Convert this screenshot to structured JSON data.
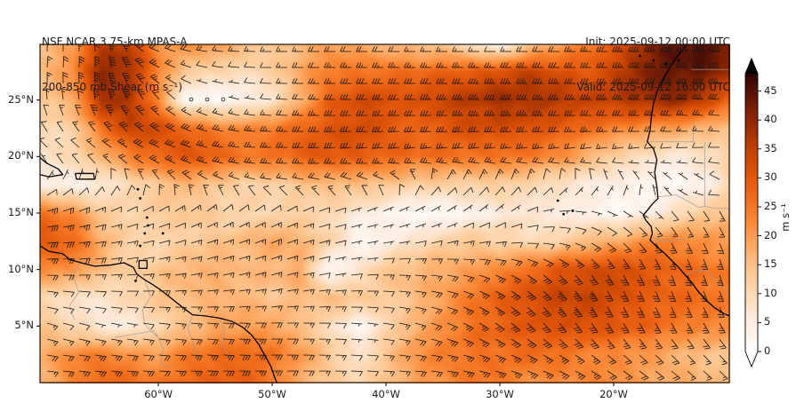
{
  "header": {
    "title_line1": "NSF NCAR 3.75-km MPAS-A",
    "title_line2": "200-850 mb Shear (m s⁻¹)",
    "init_text": "Init: 2025-09-12 00:00 UTC",
    "valid_text": "Valid: 2025-09-12 16:00 UTC"
  },
  "chart_data": {
    "type": "heatmap",
    "title": "NSF NCAR 3.75-km MPAS-A 200-850 mb Shear",
    "units": "m s⁻¹",
    "legend_position": "right-colorbar",
    "grid": false,
    "projection": {
      "lon_min": -70.4,
      "lon_max": -9.84,
      "lat_min": 0.0,
      "lat_max": 29.92
    },
    "x_ticks": [
      {
        "label": "60°W",
        "lon": -60
      },
      {
        "label": "50°W",
        "lon": -50
      },
      {
        "label": "40°W",
        "lon": -40
      },
      {
        "label": "30°W",
        "lon": -30
      },
      {
        "label": "20°W",
        "lon": -20
      }
    ],
    "y_ticks": [
      {
        "label": "25°N",
        "lat": 25
      },
      {
        "label": "20°N",
        "lat": 20
      },
      {
        "label": "15°N",
        "lat": 15
      },
      {
        "label": "10°N",
        "lat": 10
      },
      {
        "label": "5°N",
        "lat": 5
      }
    ],
    "colorbar": {
      "label": "m s⁻¹",
      "vmin": 0,
      "vmax": 48,
      "extend": "both",
      "ticks": [
        0,
        5,
        10,
        15,
        20,
        25,
        30,
        35,
        40,
        45
      ],
      "stops": [
        [
          0,
          "#ffffff"
        ],
        [
          3,
          "#fef4ec"
        ],
        [
          6,
          "#fdeadc"
        ],
        [
          10,
          "#fdd9b5"
        ],
        [
          14,
          "#fdc691"
        ],
        [
          18,
          "#fdab67"
        ],
        [
          22,
          "#fb8d3d"
        ],
        [
          26,
          "#f2701d"
        ],
        [
          30,
          "#e2570c"
        ],
        [
          34,
          "#c94602"
        ],
        [
          38,
          "#a33103"
        ],
        [
          42,
          "#7a2004"
        ],
        [
          45,
          "#541206"
        ],
        [
          48,
          "#2d0503"
        ],
        [
          50,
          "#000000"
        ]
      ]
    },
    "shear_grid": {
      "lon_start": -70,
      "lon_step": 2.5,
      "lat_start": 30,
      "lat_step": -2.5,
      "lons_count": 25,
      "lats_count": 13,
      "values": [
        [
          16,
          20,
          34,
          36,
          22,
          22,
          20,
          16,
          14,
          16,
          18,
          18,
          16,
          14,
          12,
          8,
          3,
          12,
          18,
          24,
          30,
          38,
          44,
          46,
          44
        ],
        [
          16,
          22,
          40,
          38,
          24,
          12,
          10,
          10,
          12,
          18,
          24,
          26,
          26,
          26,
          28,
          30,
          32,
          34,
          32,
          30,
          34,
          40,
          44,
          44,
          40
        ],
        [
          14,
          18,
          38,
          36,
          22,
          2,
          2,
          3,
          8,
          18,
          28,
          32,
          32,
          32,
          34,
          36,
          38,
          38,
          36,
          34,
          36,
          38,
          40,
          36,
          28
        ],
        [
          10,
          12,
          26,
          34,
          32,
          28,
          24,
          22,
          24,
          28,
          30,
          32,
          30,
          28,
          30,
          32,
          32,
          32,
          30,
          26,
          24,
          22,
          20,
          16,
          14
        ],
        [
          8,
          10,
          16,
          24,
          28,
          30,
          28,
          26,
          26,
          28,
          30,
          30,
          28,
          26,
          26,
          26,
          26,
          24,
          22,
          18,
          12,
          8,
          6,
          8,
          12
        ],
        [
          4,
          3,
          6,
          10,
          14,
          16,
          14,
          12,
          12,
          14,
          16,
          16,
          14,
          12,
          12,
          12,
          12,
          10,
          8,
          6,
          4,
          2,
          2,
          3,
          10
        ],
        [
          26,
          22,
          14,
          10,
          12,
          14,
          12,
          10,
          10,
          12,
          10,
          6,
          3,
          2,
          2,
          3,
          6,
          8,
          6,
          4,
          2,
          4,
          8,
          12,
          14
        ],
        [
          30,
          28,
          18,
          12,
          10,
          12,
          14,
          16,
          18,
          16,
          12,
          2,
          4,
          8,
          12,
          14,
          12,
          10,
          12,
          16,
          18,
          22,
          24,
          22,
          20
        ],
        [
          22,
          20,
          16,
          12,
          14,
          16,
          18,
          16,
          16,
          18,
          2,
          8,
          14,
          16,
          18,
          20,
          22,
          26,
          30,
          32,
          32,
          30,
          28,
          26,
          24
        ],
        [
          10,
          8,
          8,
          10,
          14,
          16,
          18,
          16,
          14,
          16,
          16,
          14,
          12,
          16,
          20,
          24,
          28,
          32,
          34,
          34,
          32,
          30,
          28,
          26,
          24
        ],
        [
          14,
          10,
          6,
          6,
          10,
          14,
          18,
          20,
          18,
          14,
          10,
          2,
          10,
          16,
          22,
          26,
          28,
          30,
          32,
          32,
          30,
          28,
          26,
          24,
          22
        ],
        [
          18,
          22,
          24,
          22,
          20,
          24,
          26,
          28,
          26,
          20,
          14,
          8,
          14,
          20,
          24,
          26,
          26,
          26,
          26,
          24,
          22,
          20,
          18,
          16,
          14
        ],
        [
          16,
          24,
          28,
          26,
          24,
          28,
          30,
          28,
          24,
          18,
          14,
          10,
          14,
          20,
          22,
          24,
          24,
          22,
          22,
          22,
          22,
          20,
          18,
          16,
          14
        ]
      ]
    },
    "wind_dir_grid": {
      "lon_start": -70,
      "lon_step": 5,
      "lat_start": 30,
      "lat_step": -2.5,
      "lons_count": 13,
      "lats_count": 13,
      "dir_from_deg": [
        [
          0,
          355,
          290,
          275,
          270,
          270,
          270,
          270,
          270,
          270,
          270,
          270,
          270
        ],
        [
          5,
          0,
          300,
          280,
          270,
          270,
          270,
          270,
          270,
          270,
          270,
          270,
          270
        ],
        [
          355,
          350,
          320,
          290,
          275,
          270,
          270,
          270,
          270,
          270,
          270,
          272,
          275
        ],
        [
          330,
          325,
          305,
          285,
          272,
          268,
          268,
          268,
          268,
          268,
          270,
          272,
          275
        ],
        [
          310,
          300,
          290,
          280,
          270,
          265,
          262,
          262,
          262,
          260,
          258,
          262,
          270
        ],
        [
          50,
          20,
          330,
          300,
          280,
          285,
          300,
          40,
          35,
          25,
          350,
          320,
          300
        ],
        [
          75,
          70,
          65,
          55,
          60,
          75,
          70,
          60,
          50,
          90,
          120,
          140,
          150
        ],
        [
          85,
          80,
          75,
          70,
          68,
          75,
          80,
          75,
          80,
          100,
          130,
          150,
          158
        ],
        [
          90,
          85,
          80,
          75,
          72,
          78,
          88,
          98,
          112,
          130,
          148,
          158,
          162
        ],
        [
          100,
          95,
          90,
          85,
          80,
          85,
          95,
          105,
          122,
          140,
          152,
          158,
          158
        ],
        [
          108,
          104,
          98,
          94,
          90,
          92,
          100,
          112,
          126,
          140,
          148,
          150,
          148
        ],
        [
          100,
          98,
          95,
          93,
          90,
          92,
          96,
          102,
          112,
          122,
          130,
          135,
          138
        ],
        [
          95,
          94,
          92,
          90,
          90,
          90,
          92,
          96,
          102,
          112,
          120,
          126,
          130
        ]
      ]
    },
    "barb_increments": {
      "half": 5,
      "full": 10,
      "flag": 50,
      "calm_below": 2.5
    },
    "coastlines": [
      [
        [
          -70.4,
          12.1
        ],
        [
          -69.6,
          11.6
        ],
        [
          -68.4,
          11.4
        ],
        [
          -67.8,
          10.9
        ],
        [
          -66.8,
          10.6
        ],
        [
          -65.6,
          10.3
        ],
        [
          -64.2,
          10.4
        ],
        [
          -63.0,
          10.6
        ],
        [
          -62.2,
          10.2
        ],
        [
          -61.9,
          9.6
        ],
        [
          -61.2,
          9.1
        ],
        [
          -60.4,
          8.6
        ],
        [
          -59.8,
          8.2
        ],
        [
          -58.8,
          7.4
        ],
        [
          -57.8,
          6.6
        ],
        [
          -57.0,
          6.0
        ],
        [
          -55.9,
          5.9
        ],
        [
          -54.6,
          5.7
        ],
        [
          -53.5,
          5.4
        ],
        [
          -52.6,
          4.9
        ],
        [
          -51.8,
          4.2
        ],
        [
          -51.2,
          3.4
        ],
        [
          -50.7,
          2.5
        ],
        [
          -50.1,
          1.4
        ],
        [
          -49.8,
          0.5
        ],
        [
          -49.6,
          0.0
        ]
      ],
      [
        [
          -61.7,
          10.8
        ],
        [
          -61.0,
          10.8
        ],
        [
          -61.0,
          10.1
        ],
        [
          -61.7,
          10.1
        ],
        [
          -61.7,
          10.8
        ]
      ],
      [
        [
          -67.3,
          18.5
        ],
        [
          -65.7,
          18.5
        ],
        [
          -65.6,
          18.0
        ],
        [
          -67.2,
          18.0
        ],
        [
          -67.3,
          18.5
        ]
      ],
      [
        [
          -70.4,
          19.9
        ],
        [
          -69.8,
          19.4
        ],
        [
          -68.8,
          18.9
        ],
        [
          -68.4,
          18.4
        ],
        [
          -69.6,
          18.2
        ],
        [
          -70.4,
          18.4
        ]
      ],
      [
        [
          -13.6,
          29.92
        ],
        [
          -14.6,
          28.6
        ],
        [
          -15.4,
          27.3
        ],
        [
          -16.1,
          26.0
        ],
        [
          -16.5,
          24.7
        ],
        [
          -16.7,
          23.4
        ],
        [
          -16.8,
          22.3
        ],
        [
          -17.05,
          21.3
        ],
        [
          -16.5,
          20.7
        ],
        [
          -16.2,
          19.7
        ],
        [
          -16.4,
          18.6
        ],
        [
          -16.2,
          17.3
        ],
        [
          -16.1,
          16.3
        ],
        [
          -16.6,
          15.8
        ],
        [
          -17.4,
          14.8
        ],
        [
          -17.2,
          14.4
        ],
        [
          -16.7,
          13.8
        ],
        [
          -16.6,
          13.2
        ],
        [
          -16.8,
          12.6
        ],
        [
          -16.3,
          12.1
        ],
        [
          -15.6,
          11.5
        ],
        [
          -15.0,
          10.9
        ],
        [
          -14.3,
          10.2
        ],
        [
          -13.7,
          9.5
        ],
        [
          -13.1,
          8.8
        ],
        [
          -12.6,
          8.1
        ],
        [
          -11.9,
          7.3
        ],
        [
          -11.1,
          6.6
        ],
        [
          -10.3,
          6.1
        ],
        [
          -9.84,
          5.9
        ]
      ]
    ],
    "borders": [
      [
        [
          -66.9,
          10.6
        ],
        [
          -67.5,
          9.5
        ],
        [
          -67.0,
          8.0
        ],
        [
          -67.8,
          6.8
        ],
        [
          -67.4,
          5.6
        ]
      ],
      [
        [
          -61.2,
          9.1
        ],
        [
          -60.7,
          7.6
        ],
        [
          -61.4,
          6.4
        ],
        [
          -61.2,
          5.2
        ],
        [
          -60.6,
          4.5
        ],
        [
          -60.0,
          4.0
        ]
      ],
      [
        [
          -57.0,
          6.0
        ],
        [
          -57.4,
          4.8
        ],
        [
          -57.0,
          3.6
        ],
        [
          -56.5,
          2.2
        ]
      ],
      [
        [
          -54.6,
          5.7
        ],
        [
          -54.2,
          4.6
        ],
        [
          -54.4,
          3.4
        ],
        [
          -53.8,
          2.3
        ]
      ],
      [
        [
          -63.8,
          4.0
        ],
        [
          -62.6,
          4.2
        ],
        [
          -61.4,
          4.4
        ],
        [
          -60.4,
          4.6
        ],
        [
          -60.0,
          4.0
        ],
        [
          -59.6,
          3.0
        ],
        [
          -59.8,
          1.8
        ],
        [
          -59.0,
          1.2
        ]
      ],
      [
        [
          -13.2,
          27.7
        ],
        [
          -9.84,
          27.7
        ]
      ],
      [
        [
          -17.05,
          21.3
        ],
        [
          -13.0,
          21.3
        ],
        [
          -13.0,
          23.0
        ]
      ],
      [
        [
          -12.0,
          21.3
        ],
        [
          -12.0,
          15.6
        ],
        [
          -11.0,
          15.4
        ],
        [
          -9.84,
          15.4
        ]
      ],
      [
        [
          -16.4,
          16.4
        ],
        [
          -14.5,
          16.6
        ],
        [
          -12.5,
          15.5
        ],
        [
          -12.0,
          15.6
        ]
      ],
      [
        [
          -16.8,
          12.6
        ],
        [
          -15.0,
          12.6
        ],
        [
          -13.6,
          12.7
        ]
      ],
      [
        [
          -13.7,
          9.5
        ],
        [
          -12.8,
          9.9
        ],
        [
          -11.8,
          9.9
        ],
        [
          -10.6,
          8.5
        ],
        [
          -10.3,
          8.4
        ],
        [
          -9.84,
          7.6
        ]
      ]
    ],
    "island_points": [
      [
        -17.7,
        28.9
      ],
      [
        -16.5,
        28.5
      ],
      [
        -15.4,
        28.2
      ],
      [
        -14.3,
        28.5
      ],
      [
        -24.9,
        16.1
      ],
      [
        -23.6,
        15.2
      ],
      [
        -24.4,
        14.9
      ],
      [
        -61.8,
        17.1
      ],
      [
        -61.6,
        16.3
      ],
      [
        -61.0,
        14.6
      ],
      [
        -60.9,
        13.9
      ],
      [
        -61.2,
        13.2
      ],
      [
        -61.6,
        12.1
      ],
      [
        -59.6,
        13.2
      ],
      [
        -62.0,
        9.0
      ]
    ],
    "styles": {
      "coast_color": "#000000",
      "border_color": "#9a9a9a",
      "barb_color": "#141414",
      "text_color": "#1a1a1a"
    }
  }
}
